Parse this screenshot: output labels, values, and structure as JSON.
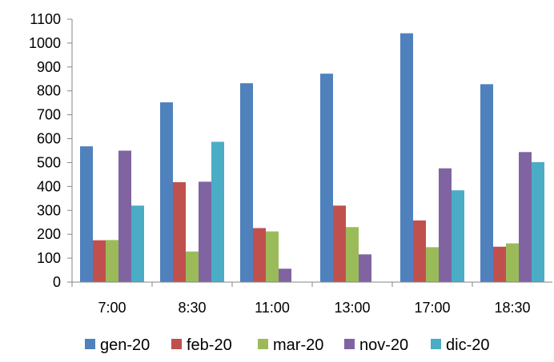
{
  "chart_data": {
    "type": "bar",
    "categories": [
      "7:00",
      "8:30",
      "11:00",
      "13:00",
      "17:00",
      "18:30"
    ],
    "series": [
      {
        "name": "gen-20",
        "color": "#4F81BD",
        "values": [
          568,
          752,
          832,
          872,
          1041,
          828
        ]
      },
      {
        "name": "feb-20",
        "color": "#C0504D",
        "values": [
          175,
          418,
          226,
          320,
          258,
          148
        ]
      },
      {
        "name": "mar-20",
        "color": "#9BBB59",
        "values": [
          176,
          128,
          212,
          230,
          146,
          162
        ]
      },
      {
        "name": "nov-20",
        "color": "#8064A2",
        "values": [
          550,
          420,
          56,
          116,
          476,
          544
        ]
      },
      {
        "name": "dic-20",
        "color": "#4BACC6",
        "values": [
          320,
          587,
          0,
          0,
          384,
          502
        ]
      }
    ],
    "ylim": [
      0,
      1100
    ],
    "yticks": [
      0,
      100,
      200,
      300,
      400,
      500,
      600,
      700,
      800,
      900,
      1000,
      1100
    ],
    "grid": false,
    "legend_position": "bottom"
  }
}
